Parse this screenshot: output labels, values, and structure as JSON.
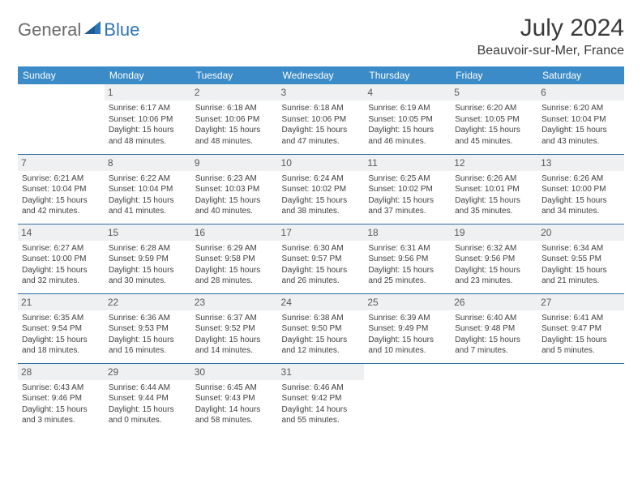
{
  "brand": {
    "text1": "General",
    "text2": "Blue"
  },
  "title": "July 2024",
  "location": "Beauvoir-sur-Mer, France",
  "colors": {
    "header_bg": "#3b8bc8",
    "header_fg": "#ffffff",
    "row_divider": "#2e6da4",
    "daynum_bg": "#eef0f1",
    "logo_gray": "#6b6b6b",
    "logo_blue": "#2e75b6",
    "text": "#404040"
  },
  "weekdays": [
    "Sunday",
    "Monday",
    "Tuesday",
    "Wednesday",
    "Thursday",
    "Friday",
    "Saturday"
  ],
  "weeks": [
    [
      null,
      {
        "n": "1",
        "sr": "6:17 AM",
        "ss": "10:06 PM",
        "dl": "15 hours and 48 minutes."
      },
      {
        "n": "2",
        "sr": "6:18 AM",
        "ss": "10:06 PM",
        "dl": "15 hours and 48 minutes."
      },
      {
        "n": "3",
        "sr": "6:18 AM",
        "ss": "10:06 PM",
        "dl": "15 hours and 47 minutes."
      },
      {
        "n": "4",
        "sr": "6:19 AM",
        "ss": "10:05 PM",
        "dl": "15 hours and 46 minutes."
      },
      {
        "n": "5",
        "sr": "6:20 AM",
        "ss": "10:05 PM",
        "dl": "15 hours and 45 minutes."
      },
      {
        "n": "6",
        "sr": "6:20 AM",
        "ss": "10:04 PM",
        "dl": "15 hours and 43 minutes."
      }
    ],
    [
      {
        "n": "7",
        "sr": "6:21 AM",
        "ss": "10:04 PM",
        "dl": "15 hours and 42 minutes."
      },
      {
        "n": "8",
        "sr": "6:22 AM",
        "ss": "10:04 PM",
        "dl": "15 hours and 41 minutes."
      },
      {
        "n": "9",
        "sr": "6:23 AM",
        "ss": "10:03 PM",
        "dl": "15 hours and 40 minutes."
      },
      {
        "n": "10",
        "sr": "6:24 AM",
        "ss": "10:02 PM",
        "dl": "15 hours and 38 minutes."
      },
      {
        "n": "11",
        "sr": "6:25 AM",
        "ss": "10:02 PM",
        "dl": "15 hours and 37 minutes."
      },
      {
        "n": "12",
        "sr": "6:26 AM",
        "ss": "10:01 PM",
        "dl": "15 hours and 35 minutes."
      },
      {
        "n": "13",
        "sr": "6:26 AM",
        "ss": "10:00 PM",
        "dl": "15 hours and 34 minutes."
      }
    ],
    [
      {
        "n": "14",
        "sr": "6:27 AM",
        "ss": "10:00 PM",
        "dl": "15 hours and 32 minutes."
      },
      {
        "n": "15",
        "sr": "6:28 AM",
        "ss": "9:59 PM",
        "dl": "15 hours and 30 minutes."
      },
      {
        "n": "16",
        "sr": "6:29 AM",
        "ss": "9:58 PM",
        "dl": "15 hours and 28 minutes."
      },
      {
        "n": "17",
        "sr": "6:30 AM",
        "ss": "9:57 PM",
        "dl": "15 hours and 26 minutes."
      },
      {
        "n": "18",
        "sr": "6:31 AM",
        "ss": "9:56 PM",
        "dl": "15 hours and 25 minutes."
      },
      {
        "n": "19",
        "sr": "6:32 AM",
        "ss": "9:56 PM",
        "dl": "15 hours and 23 minutes."
      },
      {
        "n": "20",
        "sr": "6:34 AM",
        "ss": "9:55 PM",
        "dl": "15 hours and 21 minutes."
      }
    ],
    [
      {
        "n": "21",
        "sr": "6:35 AM",
        "ss": "9:54 PM",
        "dl": "15 hours and 18 minutes."
      },
      {
        "n": "22",
        "sr": "6:36 AM",
        "ss": "9:53 PM",
        "dl": "15 hours and 16 minutes."
      },
      {
        "n": "23",
        "sr": "6:37 AM",
        "ss": "9:52 PM",
        "dl": "15 hours and 14 minutes."
      },
      {
        "n": "24",
        "sr": "6:38 AM",
        "ss": "9:50 PM",
        "dl": "15 hours and 12 minutes."
      },
      {
        "n": "25",
        "sr": "6:39 AM",
        "ss": "9:49 PM",
        "dl": "15 hours and 10 minutes."
      },
      {
        "n": "26",
        "sr": "6:40 AM",
        "ss": "9:48 PM",
        "dl": "15 hours and 7 minutes."
      },
      {
        "n": "27",
        "sr": "6:41 AM",
        "ss": "9:47 PM",
        "dl": "15 hours and 5 minutes."
      }
    ],
    [
      {
        "n": "28",
        "sr": "6:43 AM",
        "ss": "9:46 PM",
        "dl": "15 hours and 3 minutes."
      },
      {
        "n": "29",
        "sr": "6:44 AM",
        "ss": "9:44 PM",
        "dl": "15 hours and 0 minutes."
      },
      {
        "n": "30",
        "sr": "6:45 AM",
        "ss": "9:43 PM",
        "dl": "14 hours and 58 minutes."
      },
      {
        "n": "31",
        "sr": "6:46 AM",
        "ss": "9:42 PM",
        "dl": "14 hours and 55 minutes."
      },
      null,
      null,
      null
    ]
  ],
  "labels": {
    "sunrise": "Sunrise:",
    "sunset": "Sunset:",
    "daylight": "Daylight:"
  }
}
